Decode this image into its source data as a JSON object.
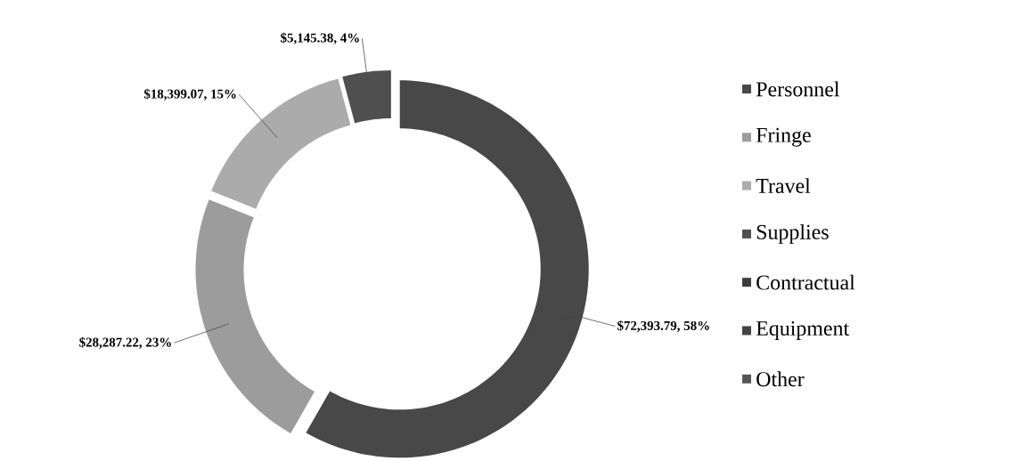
{
  "chart_data": {
    "type": "donut",
    "categories": [
      "Personnel",
      "Fringe",
      "Travel",
      "Supplies",
      "Contractual",
      "Equipment",
      "Other"
    ],
    "values": [
      72393.79,
      28287.22,
      18399.07,
      5145.38,
      0,
      0,
      0
    ],
    "colors": [
      "#484848",
      "#9c9c9c",
      "#ababab",
      "#4f4f4f",
      "#3c3c3c",
      "#444444",
      "#555555"
    ],
    "value_labels": [
      "$72,393.79, 58%",
      "$28,287.22, 23%",
      "$18,399.07, 15%",
      "$5,145.38, 4%",
      null,
      null,
      null
    ],
    "legend": "right"
  }
}
